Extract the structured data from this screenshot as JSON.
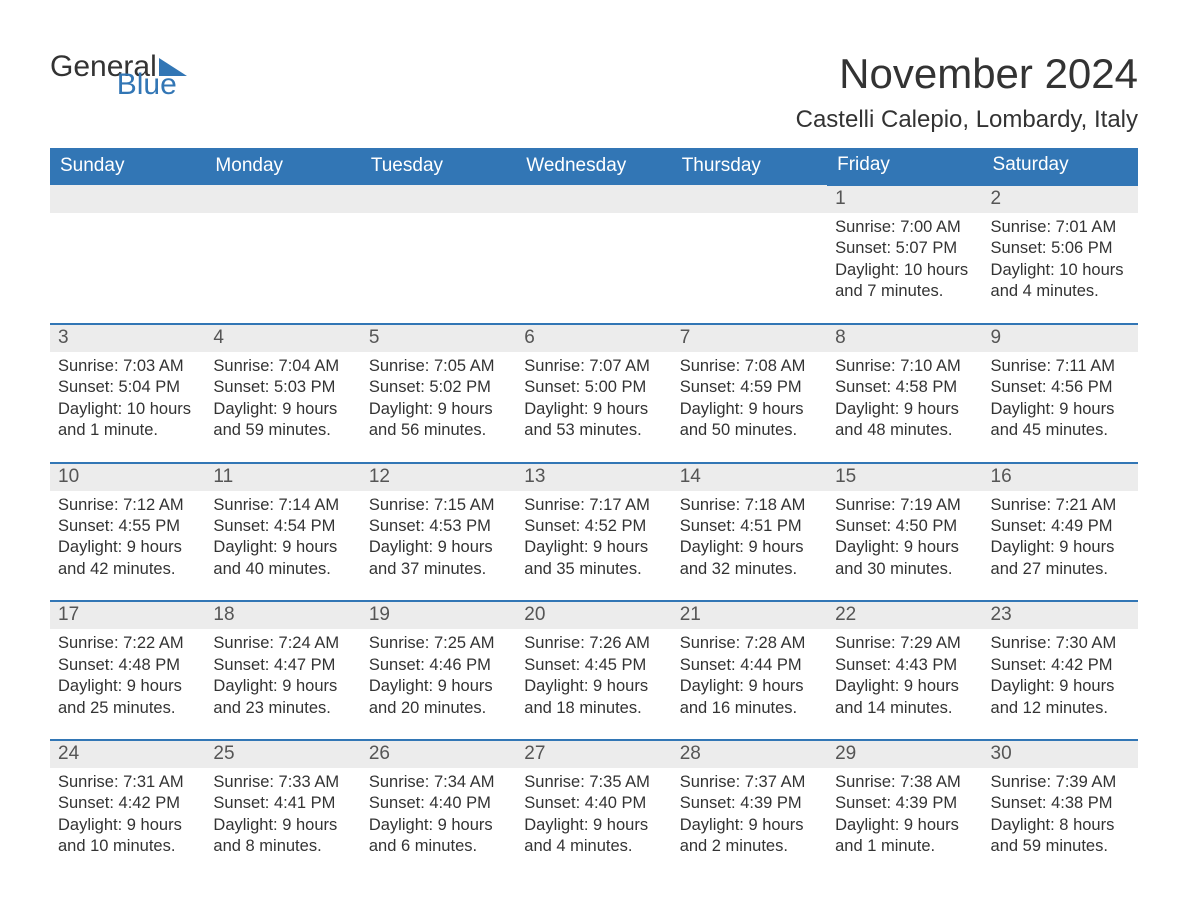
{
  "brand": {
    "part1": "General",
    "part2": "Blue",
    "color_text": "#333333",
    "color_accent": "#3276b5"
  },
  "title": "November 2024",
  "location": "Castelli Calepio, Lombardy, Italy",
  "colors": {
    "header_bg": "#3276b5",
    "header_text": "#ffffff",
    "daynum_bg": "#ececec",
    "daynum_border": "#3276b5",
    "body_text": "#333333",
    "page_bg": "#ffffff"
  },
  "typography": {
    "title_fontsize": 42,
    "subtitle_fontsize": 24,
    "header_fontsize": 19,
    "daynum_fontsize": 19,
    "body_fontsize": 16.5,
    "font_family": "Arial"
  },
  "calendar": {
    "type": "table",
    "columns": [
      "Sunday",
      "Monday",
      "Tuesday",
      "Wednesday",
      "Thursday",
      "Friday",
      "Saturday"
    ],
    "weeks": [
      [
        null,
        null,
        null,
        null,
        null,
        {
          "n": "1",
          "sunrise": "Sunrise: 7:00 AM",
          "sunset": "Sunset: 5:07 PM",
          "dl1": "Daylight: 10 hours",
          "dl2": "and 7 minutes."
        },
        {
          "n": "2",
          "sunrise": "Sunrise: 7:01 AM",
          "sunset": "Sunset: 5:06 PM",
          "dl1": "Daylight: 10 hours",
          "dl2": "and 4 minutes."
        }
      ],
      [
        {
          "n": "3",
          "sunrise": "Sunrise: 7:03 AM",
          "sunset": "Sunset: 5:04 PM",
          "dl1": "Daylight: 10 hours",
          "dl2": "and 1 minute."
        },
        {
          "n": "4",
          "sunrise": "Sunrise: 7:04 AM",
          "sunset": "Sunset: 5:03 PM",
          "dl1": "Daylight: 9 hours",
          "dl2": "and 59 minutes."
        },
        {
          "n": "5",
          "sunrise": "Sunrise: 7:05 AM",
          "sunset": "Sunset: 5:02 PM",
          "dl1": "Daylight: 9 hours",
          "dl2": "and 56 minutes."
        },
        {
          "n": "6",
          "sunrise": "Sunrise: 7:07 AM",
          "sunset": "Sunset: 5:00 PM",
          "dl1": "Daylight: 9 hours",
          "dl2": "and 53 minutes."
        },
        {
          "n": "7",
          "sunrise": "Sunrise: 7:08 AM",
          "sunset": "Sunset: 4:59 PM",
          "dl1": "Daylight: 9 hours",
          "dl2": "and 50 minutes."
        },
        {
          "n": "8",
          "sunrise": "Sunrise: 7:10 AM",
          "sunset": "Sunset: 4:58 PM",
          "dl1": "Daylight: 9 hours",
          "dl2": "and 48 minutes."
        },
        {
          "n": "9",
          "sunrise": "Sunrise: 7:11 AM",
          "sunset": "Sunset: 4:56 PM",
          "dl1": "Daylight: 9 hours",
          "dl2": "and 45 minutes."
        }
      ],
      [
        {
          "n": "10",
          "sunrise": "Sunrise: 7:12 AM",
          "sunset": "Sunset: 4:55 PM",
          "dl1": "Daylight: 9 hours",
          "dl2": "and 42 minutes."
        },
        {
          "n": "11",
          "sunrise": "Sunrise: 7:14 AM",
          "sunset": "Sunset: 4:54 PM",
          "dl1": "Daylight: 9 hours",
          "dl2": "and 40 minutes."
        },
        {
          "n": "12",
          "sunrise": "Sunrise: 7:15 AM",
          "sunset": "Sunset: 4:53 PM",
          "dl1": "Daylight: 9 hours",
          "dl2": "and 37 minutes."
        },
        {
          "n": "13",
          "sunrise": "Sunrise: 7:17 AM",
          "sunset": "Sunset: 4:52 PM",
          "dl1": "Daylight: 9 hours",
          "dl2": "and 35 minutes."
        },
        {
          "n": "14",
          "sunrise": "Sunrise: 7:18 AM",
          "sunset": "Sunset: 4:51 PM",
          "dl1": "Daylight: 9 hours",
          "dl2": "and 32 minutes."
        },
        {
          "n": "15",
          "sunrise": "Sunrise: 7:19 AM",
          "sunset": "Sunset: 4:50 PM",
          "dl1": "Daylight: 9 hours",
          "dl2": "and 30 minutes."
        },
        {
          "n": "16",
          "sunrise": "Sunrise: 7:21 AM",
          "sunset": "Sunset: 4:49 PM",
          "dl1": "Daylight: 9 hours",
          "dl2": "and 27 minutes."
        }
      ],
      [
        {
          "n": "17",
          "sunrise": "Sunrise: 7:22 AM",
          "sunset": "Sunset: 4:48 PM",
          "dl1": "Daylight: 9 hours",
          "dl2": "and 25 minutes."
        },
        {
          "n": "18",
          "sunrise": "Sunrise: 7:24 AM",
          "sunset": "Sunset: 4:47 PM",
          "dl1": "Daylight: 9 hours",
          "dl2": "and 23 minutes."
        },
        {
          "n": "19",
          "sunrise": "Sunrise: 7:25 AM",
          "sunset": "Sunset: 4:46 PM",
          "dl1": "Daylight: 9 hours",
          "dl2": "and 20 minutes."
        },
        {
          "n": "20",
          "sunrise": "Sunrise: 7:26 AM",
          "sunset": "Sunset: 4:45 PM",
          "dl1": "Daylight: 9 hours",
          "dl2": "and 18 minutes."
        },
        {
          "n": "21",
          "sunrise": "Sunrise: 7:28 AM",
          "sunset": "Sunset: 4:44 PM",
          "dl1": "Daylight: 9 hours",
          "dl2": "and 16 minutes."
        },
        {
          "n": "22",
          "sunrise": "Sunrise: 7:29 AM",
          "sunset": "Sunset: 4:43 PM",
          "dl1": "Daylight: 9 hours",
          "dl2": "and 14 minutes."
        },
        {
          "n": "23",
          "sunrise": "Sunrise: 7:30 AM",
          "sunset": "Sunset: 4:42 PM",
          "dl1": "Daylight: 9 hours",
          "dl2": "and 12 minutes."
        }
      ],
      [
        {
          "n": "24",
          "sunrise": "Sunrise: 7:31 AM",
          "sunset": "Sunset: 4:42 PM",
          "dl1": "Daylight: 9 hours",
          "dl2": "and 10 minutes."
        },
        {
          "n": "25",
          "sunrise": "Sunrise: 7:33 AM",
          "sunset": "Sunset: 4:41 PM",
          "dl1": "Daylight: 9 hours",
          "dl2": "and 8 minutes."
        },
        {
          "n": "26",
          "sunrise": "Sunrise: 7:34 AM",
          "sunset": "Sunset: 4:40 PM",
          "dl1": "Daylight: 9 hours",
          "dl2": "and 6 minutes."
        },
        {
          "n": "27",
          "sunrise": "Sunrise: 7:35 AM",
          "sunset": "Sunset: 4:40 PM",
          "dl1": "Daylight: 9 hours",
          "dl2": "and 4 minutes."
        },
        {
          "n": "28",
          "sunrise": "Sunrise: 7:37 AM",
          "sunset": "Sunset: 4:39 PM",
          "dl1": "Daylight: 9 hours",
          "dl2": "and 2 minutes."
        },
        {
          "n": "29",
          "sunrise": "Sunrise: 7:38 AM",
          "sunset": "Sunset: 4:39 PM",
          "dl1": "Daylight: 9 hours",
          "dl2": "and 1 minute."
        },
        {
          "n": "30",
          "sunrise": "Sunrise: 7:39 AM",
          "sunset": "Sunset: 4:38 PM",
          "dl1": "Daylight: 8 hours",
          "dl2": "and 59 minutes."
        }
      ]
    ]
  }
}
